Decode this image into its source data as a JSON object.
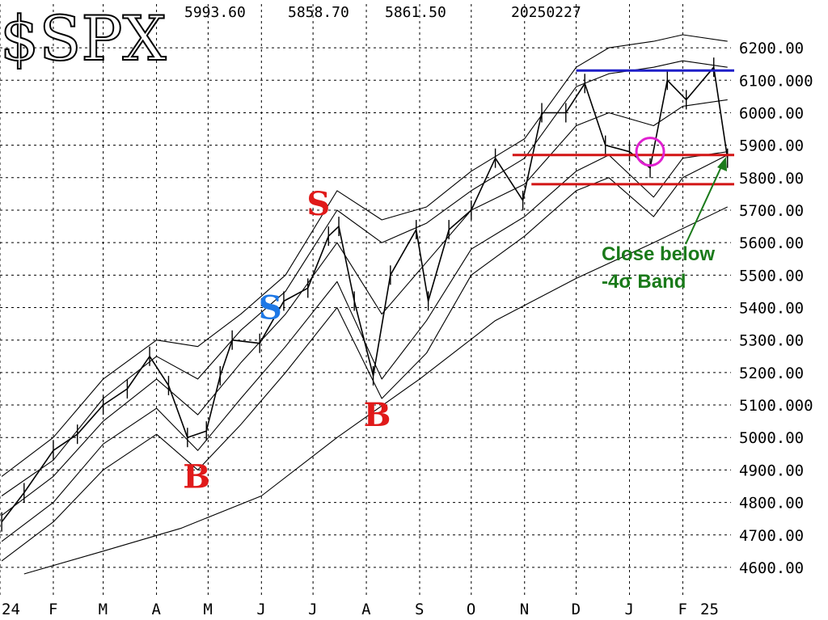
{
  "chart_data": {
    "type": "line",
    "symbol": "$SPX",
    "header": {
      "high": "5993.60",
      "low": "5858.70",
      "close": "5861.50",
      "date": "20250227"
    },
    "title": "",
    "xlabel": "",
    "ylabel": "",
    "ylim": [
      4560,
      6260
    ],
    "grid": true,
    "y_ticks": [
      "4600.00",
      "4700.00",
      "4800.00",
      "4900.00",
      "5000.00",
      "5100.000",
      "5200.00",
      "5300.00",
      "5400.00",
      "5500.00",
      "5600.00",
      "5700.00",
      "5800.00",
      "5900.00",
      "6000.00",
      "6100.000",
      "6200.00"
    ],
    "x_ticks": [
      "24",
      "F",
      "M",
      "A",
      "M",
      "J",
      "J",
      "A",
      "S",
      "O",
      "N",
      "D",
      "J",
      "F",
      "25"
    ],
    "months": [
      "2024-01",
      "2024-02",
      "2024-03",
      "2024-04",
      "2024-05",
      "2024-06",
      "2024-07",
      "2024-08",
      "2024-09",
      "2024-10",
      "2024-11",
      "2024-12",
      "2025-01",
      "2025-02"
    ],
    "series": [
      {
        "role": "close",
        "x": [
          "2024-01-02",
          "2024-01-15",
          "2024-02-01",
          "2024-02-15",
          "2024-03-01",
          "2024-03-15",
          "2024-03-28",
          "2024-04-08",
          "2024-04-19",
          "2024-04-30",
          "2024-05-08",
          "2024-05-15",
          "2024-05-31",
          "2024-06-14",
          "2024-06-28",
          "2024-07-10",
          "2024-07-16",
          "2024-07-25",
          "2024-08-05",
          "2024-08-15",
          "2024-08-30",
          "2024-09-06",
          "2024-09-18",
          "2024-10-01",
          "2024-10-15",
          "2024-10-31",
          "2024-11-11",
          "2024-11-25",
          "2024-12-06",
          "2024-12-18",
          "2025-01-01",
          "2025-01-13",
          "2025-01-23",
          "2025-02-03",
          "2025-02-19",
          "2025-02-27"
        ],
        "values": [
          4740,
          4830,
          4960,
          5010,
          5100,
          5150,
          5250,
          5160,
          5000,
          5020,
          5190,
          5300,
          5290,
          5420,
          5460,
          5620,
          5650,
          5420,
          5190,
          5500,
          5640,
          5420,
          5640,
          5700,
          5860,
          5730,
          6000,
          6000,
          6090,
          5900,
          5880,
          5830,
          6100,
          6040,
          6140,
          5860
        ]
      },
      {
        "role": "upper-band",
        "x": [
          "2024-01-02",
          "2024-02-01",
          "2024-03-01",
          "2024-04-01",
          "2024-04-25",
          "2024-05-20",
          "2024-06-15",
          "2024-07-15",
          "2024-08-10",
          "2024-09-05",
          "2024-10-01",
          "2024-11-01",
          "2024-12-01",
          "2024-12-20",
          "2025-01-15",
          "2025-02-01",
          "2025-02-27"
        ],
        "values": [
          4880,
          5000,
          5180,
          5300,
          5280,
          5380,
          5500,
          5760,
          5670,
          5710,
          5820,
          5920,
          6140,
          6200,
          6220,
          6240,
          6220
        ]
      },
      {
        "role": "upper-band-2",
        "x": [
          "2024-01-02",
          "2024-02-01",
          "2024-03-01",
          "2024-04-01",
          "2024-04-25",
          "2024-05-20",
          "2024-06-15",
          "2024-07-15",
          "2024-08-10",
          "2024-09-05",
          "2024-10-01",
          "2024-11-01",
          "2024-12-01",
          "2024-12-20",
          "2025-01-15",
          "2025-02-01",
          "2025-02-27"
        ],
        "values": [
          4820,
          4930,
          5120,
          5250,
          5180,
          5330,
          5450,
          5700,
          5600,
          5660,
          5760,
          5860,
          6080,
          6120,
          6140,
          6160,
          6140
        ]
      },
      {
        "role": "middle-band",
        "x": [
          "2024-01-02",
          "2024-02-01",
          "2024-03-01",
          "2024-04-01",
          "2024-04-25",
          "2024-05-20",
          "2024-06-15",
          "2024-07-15",
          "2024-08-10",
          "2024-09-05",
          "2024-10-01",
          "2024-11-01",
          "2024-12-01",
          "2024-12-20",
          "2025-01-15",
          "2025-02-01",
          "2025-02-27"
        ],
        "values": [
          4760,
          4880,
          5050,
          5180,
          5070,
          5230,
          5380,
          5600,
          5380,
          5540,
          5700,
          5780,
          5960,
          6000,
          5960,
          6020,
          6040
        ]
      },
      {
        "role": "lower-band-2",
        "x": [
          "2024-01-02",
          "2024-02-01",
          "2024-03-01",
          "2024-04-01",
          "2024-04-25",
          "2024-05-20",
          "2024-06-15",
          "2024-07-15",
          "2024-08-10",
          "2024-09-05",
          "2024-10-01",
          "2024-11-01",
          "2024-12-01",
          "2024-12-20",
          "2025-01-15",
          "2025-02-01",
          "2025-02-27"
        ],
        "values": [
          4680,
          4800,
          4980,
          5090,
          4960,
          5120,
          5280,
          5480,
          5180,
          5360,
          5580,
          5680,
          5820,
          5870,
          5740,
          5860,
          5880
        ]
      },
      {
        "role": "lower-band",
        "x": [
          "2024-01-02",
          "2024-02-01",
          "2024-03-01",
          "2024-04-01",
          "2024-04-25",
          "2024-05-20",
          "2024-06-15",
          "2024-07-15",
          "2024-08-10",
          "2024-09-05",
          "2024-10-01",
          "2024-11-01",
          "2024-12-01",
          "2024-12-20",
          "2025-01-15",
          "2025-02-01",
          "2025-02-27"
        ],
        "values": [
          4620,
          4740,
          4900,
          5010,
          4900,
          5040,
          5200,
          5400,
          5120,
          5260,
          5500,
          5620,
          5760,
          5800,
          5680,
          5800,
          5870
        ]
      },
      {
        "role": "200-day-ma",
        "x": [
          "2024-01-15",
          "2024-03-01",
          "2024-04-15",
          "2024-06-01",
          "2024-07-15",
          "2024-09-01",
          "2024-10-15",
          "2024-12-01",
          "2025-01-15",
          "2025-02-27"
        ],
        "values": [
          4580,
          4650,
          4720,
          4820,
          5000,
          5180,
          5360,
          5490,
          5600,
          5710
        ]
      }
    ],
    "horizontal_lines": [
      {
        "y": 6130,
        "color": "#1f1fc8",
        "from": "2024-12-01",
        "to": "2025-02-27"
      },
      {
        "y": 5870,
        "color": "#d21414",
        "from": "2024-10-25",
        "to": "2025-02-27"
      },
      {
        "y": 5780,
        "color": "#d21414",
        "from": "2024-11-05",
        "to": "2025-02-27"
      }
    ],
    "signals": [
      {
        "label": "B",
        "x": "2024-04-22",
        "y": 4880,
        "color": "#e01a1a"
      },
      {
        "label": "S",
        "x": "2024-06-05",
        "y": 5400,
        "color": "#1e78e6"
      },
      {
        "label": "S",
        "x": "2024-07-03",
        "y": 5720,
        "color": "#e01a1a"
      },
      {
        "label": "B",
        "x": "2024-08-05",
        "y": 5070,
        "color": "#e01a1a"
      }
    ],
    "annotation": {
      "text_line1": "Close below",
      "text_line2": "-4σ Band",
      "color": "#1a7a1a",
      "circle_color": "#e020d0",
      "circle_at": {
        "x": "2025-01-13",
        "y": 5880
      }
    },
    "colors": {
      "price": "#000000",
      "grid": "#000000"
    }
  }
}
